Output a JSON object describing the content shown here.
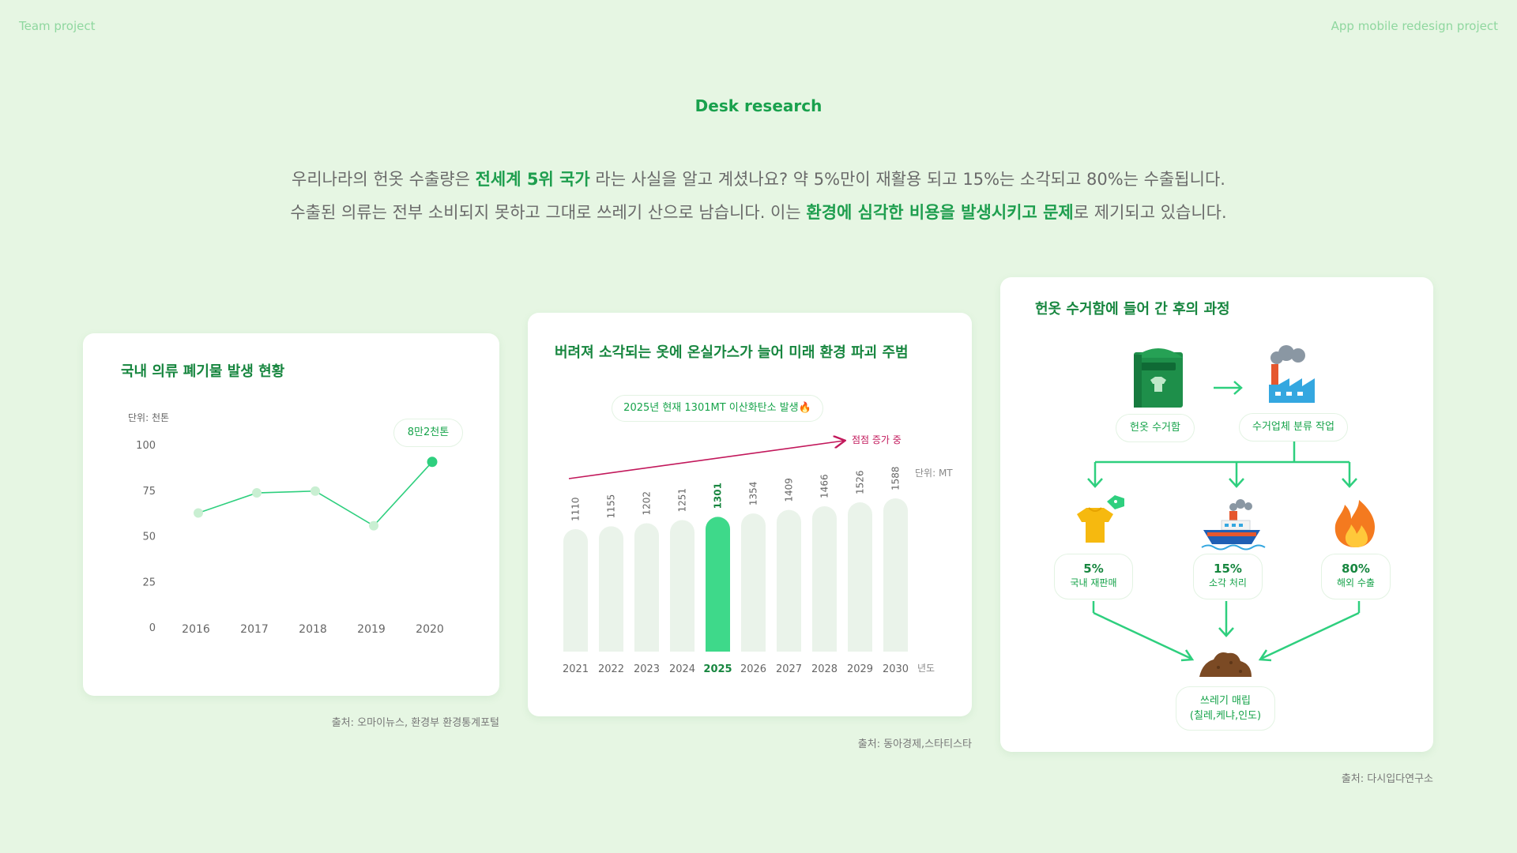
{
  "header": {
    "left": "Team project",
    "right": "App mobile redesign project"
  },
  "section_title": "Desk research",
  "intro": {
    "line1_a": "우리나라의 헌옷 수출량은 ",
    "line1_b": "전세계 5위 국가",
    "line1_c": " 라는 사실을 알고 계셨나요? 약 5%만이 재활용 되고 15%는 소각되고 80%는 수출됩니다.",
    "line2_a": "수출된 의류는 전부 소비되지 못하고 그대로 쓰레기 산으로 남습니다. 이는 ",
    "line2_b": "환경에 심각한 비용을 발생시키고 문제",
    "line2_c": "로 제기되고 있습니다."
  },
  "card1": {
    "title": "국내 의류 폐기물 발생 현황",
    "unit": "단위: 천톤",
    "callout": "8만2천톤",
    "source": "출처: 오마이뉴스, 환경부 환경통계포털"
  },
  "card2": {
    "title": "버려져 소각되는 옷에 온실가스가 늘어 미래 환경 파괴 주범",
    "callout": "2025년 현재 1301MT 이산화탄소 발생🔥",
    "trend_label": "점점 증가 중",
    "unit": "단위: MT",
    "x_unit": "년도",
    "source": "출처: 동아경제,스타티스타"
  },
  "card3": {
    "title": "헌옷 수거함에 들어 간 후의 과정",
    "box_label": "헌옷 수거함",
    "sort_label": "수거업체 분류 작업",
    "outcomes": [
      {
        "pct": "5%",
        "label": "국내 재판매"
      },
      {
        "pct": "15%",
        "label": "소각 처리"
      },
      {
        "pct": "80%",
        "label": "해외 수출"
      }
    ],
    "landfill_line1": "쓰레기 매립",
    "landfill_line2": "(칠레,케냐,인도)",
    "source": "출처: 다시입다연구소"
  },
  "colors": {
    "accent": "#2ecf7e",
    "dark_green": "#17863f",
    "trend": "#c2185b",
    "bar_bg": "#eaf3ea"
  },
  "chart_data": [
    {
      "type": "line",
      "title": "국내 의류 폐기물 발생 현황",
      "ylabel": "단위: 천톤",
      "x": [
        "2016",
        "2017",
        "2018",
        "2019",
        "2020"
      ],
      "series": [
        {
          "values": [
            63,
            74,
            75,
            56,
            91
          ]
        }
      ],
      "yticks": [
        "0",
        "25",
        "50",
        "75",
        "100"
      ],
      "ylim": [
        0,
        100
      ],
      "grid": false
    },
    {
      "type": "bar",
      "title": "버려져 소각되는 옷에 온실가스가 늘어 미래 환경 파괴 주범",
      "ylabel": "단위: MT",
      "xlabel": "년도",
      "categories": [
        "2021",
        "2022",
        "2023",
        "2024",
        "2025",
        "2026",
        "2027",
        "2028",
        "2029",
        "2030"
      ],
      "values": [
        1110,
        1155,
        1202,
        1251,
        1301,
        1354,
        1409,
        1466,
        1526,
        1588
      ],
      "value_labels": [
        "1110",
        "1155",
        "1202",
        "1251",
        "1301",
        "1354",
        "1409",
        "1466",
        "1526",
        "1588"
      ],
      "highlight": "2025"
    }
  ]
}
